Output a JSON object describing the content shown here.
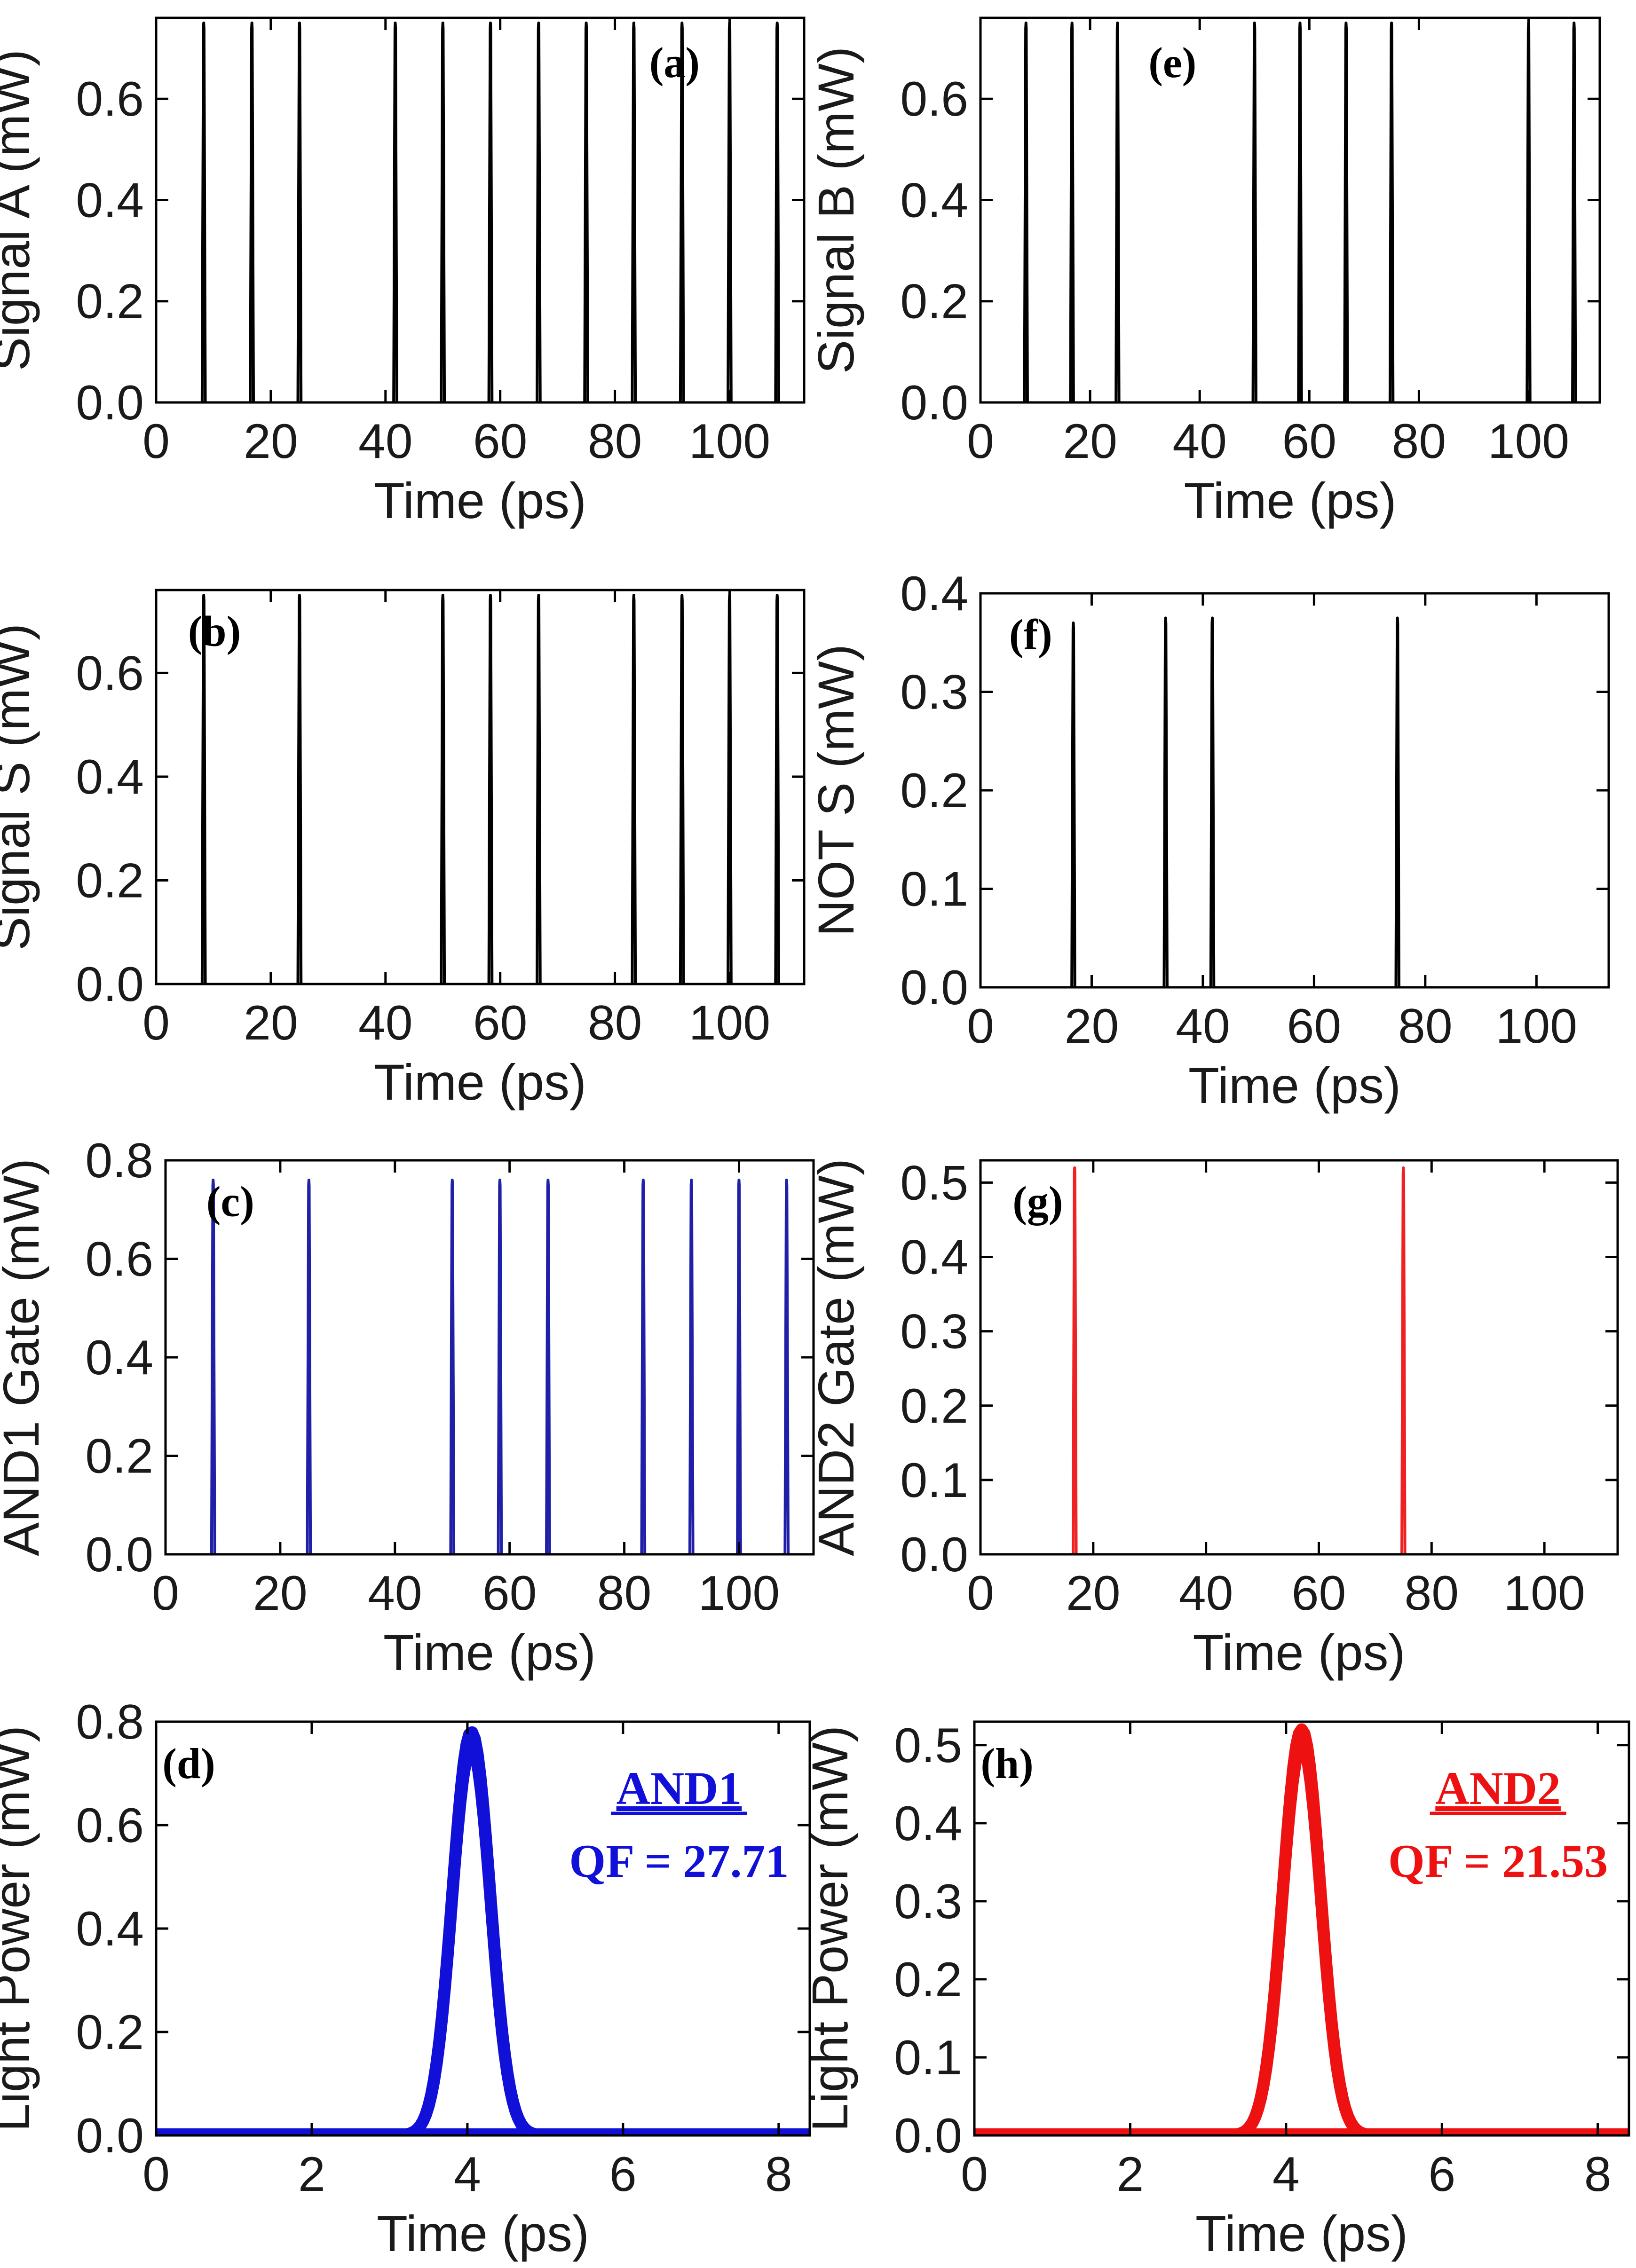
{
  "chart_data": [
    {
      "id": "a",
      "type": "line",
      "label": "(a)",
      "title": "",
      "xlabel": "Time (ps)",
      "ylabel": "Signal  A (mW)",
      "xlim": [
        0,
        113
      ],
      "ylim": [
        0,
        0.76
      ],
      "xticks": [
        "0",
        "20",
        "40",
        "60",
        "80",
        "100"
      ],
      "xtick_values": [
        0,
        20,
        40,
        60,
        80,
        100
      ],
      "yticks": [
        "0.0",
        "0.2",
        "0.4",
        "0.6"
      ],
      "ytick_values": [
        0,
        0.2,
        0.4,
        0.6
      ],
      "series": [
        {
          "name": "Signal A",
          "color": "#000000",
          "shape": "narrow-pulse",
          "pulse_width_ps": 0.55,
          "baseline": 0,
          "x": [
            8.3,
            16.7,
            25.0,
            41.7,
            50.0,
            58.3,
            66.7,
            75.0,
            83.3,
            91.7,
            100.0,
            108.3
          ],
          "y": [
            0.75,
            0.75,
            0.75,
            0.75,
            0.75,
            0.75,
            0.75,
            0.75,
            0.75,
            0.75,
            0.75,
            0.75
          ]
        }
      ]
    },
    {
      "id": "e",
      "type": "line",
      "label": "(e)",
      "title": "",
      "xlabel": "Time (ps)",
      "ylabel": "Signal  B (mW)",
      "xlim": [
        0,
        113
      ],
      "ylim": [
        0,
        0.76
      ],
      "xticks": [
        "0",
        "20",
        "40",
        "60",
        "80",
        "100"
      ],
      "xtick_values": [
        0,
        20,
        40,
        60,
        80,
        100
      ],
      "yticks": [
        "0.0",
        "0.2",
        "0.4",
        "0.6"
      ],
      "ytick_values": [
        0,
        0.2,
        0.4,
        0.6
      ],
      "series": [
        {
          "name": "Signal B",
          "color": "#000000",
          "shape": "narrow-pulse",
          "pulse_width_ps": 0.55,
          "baseline": 0,
          "x": [
            8.3,
            16.7,
            25.0,
            50.0,
            58.3,
            66.7,
            75.0,
            100.0,
            108.3
          ],
          "y": [
            0.75,
            0.75,
            0.75,
            0.75,
            0.75,
            0.75,
            0.75,
            0.75,
            0.75
          ]
        }
      ]
    },
    {
      "id": "b",
      "type": "line",
      "label": "(b)",
      "title": "",
      "xlabel": "Time (ps)",
      "ylabel": "Signal  S (mW)",
      "xlim": [
        0,
        113
      ],
      "ylim": [
        0,
        0.76
      ],
      "xticks": [
        "0",
        "20",
        "40",
        "60",
        "80",
        "100"
      ],
      "xtick_values": [
        0,
        20,
        40,
        60,
        80,
        100
      ],
      "yticks": [
        "0.0",
        "0.2",
        "0.4",
        "0.6"
      ],
      "ytick_values": [
        0,
        0.2,
        0.4,
        0.6
      ],
      "series": [
        {
          "name": "Signal S",
          "color": "#000000",
          "shape": "narrow-pulse",
          "pulse_width_ps": 0.55,
          "baseline": 0,
          "x": [
            8.3,
            25.0,
            50.0,
            58.3,
            66.7,
            83.3,
            91.7,
            100.0,
            108.3
          ],
          "y": [
            0.75,
            0.75,
            0.75,
            0.75,
            0.75,
            0.75,
            0.75,
            0.75,
            0.75
          ]
        }
      ]
    },
    {
      "id": "f",
      "type": "line",
      "label": "(f)",
      "title": "",
      "xlabel": "Time (ps)",
      "ylabel": "NOT S (mW)",
      "xlim": [
        0,
        113
      ],
      "ylim": [
        0,
        0.4
      ],
      "xticks": [
        "0",
        "20",
        "40",
        "60",
        "80",
        "100"
      ],
      "xtick_values": [
        0,
        20,
        40,
        60,
        80,
        100
      ],
      "yticks": [
        "0.0",
        "0.1",
        "0.2",
        "0.3",
        "0.4"
      ],
      "ytick_values": [
        0,
        0.1,
        0.2,
        0.3,
        0.4
      ],
      "series": [
        {
          "name": "NOT S",
          "color": "#000000",
          "shape": "narrow-pulse",
          "pulse_width_ps": 0.55,
          "baseline": 0,
          "x": [
            16.7,
            33.3,
            41.7,
            75.0
          ],
          "y": [
            0.37,
            0.375,
            0.375,
            0.375
          ]
        }
      ]
    },
    {
      "id": "c",
      "type": "line",
      "label": "(c)",
      "title": "",
      "xlabel": "Time (ps)",
      "ylabel": "AND1 Gate (mW)",
      "xlim": [
        0,
        113
      ],
      "ylim": [
        0,
        0.8
      ],
      "xticks": [
        "0",
        "20",
        "40",
        "60",
        "80",
        "100"
      ],
      "xtick_values": [
        0,
        20,
        40,
        60,
        80,
        100
      ],
      "yticks": [
        "0.0",
        "0.2",
        "0.4",
        "0.6",
        "0.8"
      ],
      "ytick_values": [
        0,
        0.2,
        0.4,
        0.6,
        0.8
      ],
      "series": [
        {
          "name": "AND1 Gate",
          "color": "#1f1fa8",
          "shape": "narrow-pulse",
          "pulse_width_ps": 0.55,
          "baseline": 0,
          "x": [
            8.3,
            25.0,
            50.0,
            58.3,
            66.7,
            83.3,
            91.7,
            100.0,
            108.3
          ],
          "y": [
            0.76,
            0.76,
            0.76,
            0.76,
            0.76,
            0.76,
            0.76,
            0.76,
            0.76
          ]
        }
      ]
    },
    {
      "id": "g",
      "type": "line",
      "label": "(g)",
      "title": "",
      "xlabel": "Time (ps)",
      "ylabel": "AND2 Gate (mW)",
      "xlim": [
        0,
        113
      ],
      "ylim": [
        0,
        0.53
      ],
      "xticks": [
        "0",
        "20",
        "40",
        "60",
        "80",
        "100"
      ],
      "xtick_values": [
        0,
        20,
        40,
        60,
        80,
        100
      ],
      "yticks": [
        "0.0",
        "0.1",
        "0.2",
        "0.3",
        "0.4",
        "0.5"
      ],
      "ytick_values": [
        0,
        0.1,
        0.2,
        0.3,
        0.4,
        0.5
      ],
      "series": [
        {
          "name": "AND2 Gate",
          "color": "#ee2222",
          "shape": "narrow-pulse",
          "pulse_width_ps": 0.55,
          "baseline": 0,
          "x": [
            16.7,
            75.0
          ],
          "y": [
            0.52,
            0.52
          ]
        }
      ]
    },
    {
      "id": "d",
      "type": "line",
      "label": "(d)",
      "title": "",
      "xlabel": "Time (ps)",
      "ylabel": "Light Power (mW)",
      "xlim": [
        0,
        8.4
      ],
      "ylim": [
        0,
        0.8
      ],
      "xticks": [
        "0",
        "2",
        "4",
        "6",
        "8"
      ],
      "xtick_values": [
        0,
        2,
        4,
        6,
        8
      ],
      "yticks": [
        "0.0",
        "0.2",
        "0.4",
        "0.6",
        "0.8"
      ],
      "ytick_values": [
        0,
        0.2,
        0.4,
        0.6,
        0.8
      ],
      "annotation": {
        "name": "AND1",
        "qf": "QF = 27.71",
        "color": "#1010d8"
      },
      "series": [
        {
          "name": "AND1",
          "color": "#1010d8",
          "shape": "gaussian-eye",
          "center_ps": 4.05,
          "sigma_ps": 0.24,
          "peak": 0.78,
          "baseline": 0
        }
      ]
    },
    {
      "id": "h",
      "type": "line",
      "label": "(h)",
      "title": "",
      "xlabel": "Time (ps)",
      "ylabel": "Light Power (mW)",
      "xlim": [
        0,
        8.4
      ],
      "ylim": [
        0,
        0.53
      ],
      "xticks": [
        "0",
        "2",
        "4",
        "6",
        "8"
      ],
      "xtick_values": [
        0,
        2,
        4,
        6,
        8
      ],
      "yticks": [
        "0.0",
        "0.1",
        "0.2",
        "0.3",
        "0.4",
        "0.5"
      ],
      "ytick_values": [
        0,
        0.1,
        0.2,
        0.3,
        0.4,
        0.5
      ],
      "annotation": {
        "name": "AND2",
        "qf": "QF = 21.53",
        "color": "#ee1111"
      },
      "series": [
        {
          "name": "AND2",
          "color": "#ee1111",
          "shape": "gaussian-eye",
          "center_ps": 4.2,
          "sigma_ps": 0.24,
          "peak": 0.52,
          "baseline": 0
        }
      ]
    }
  ]
}
